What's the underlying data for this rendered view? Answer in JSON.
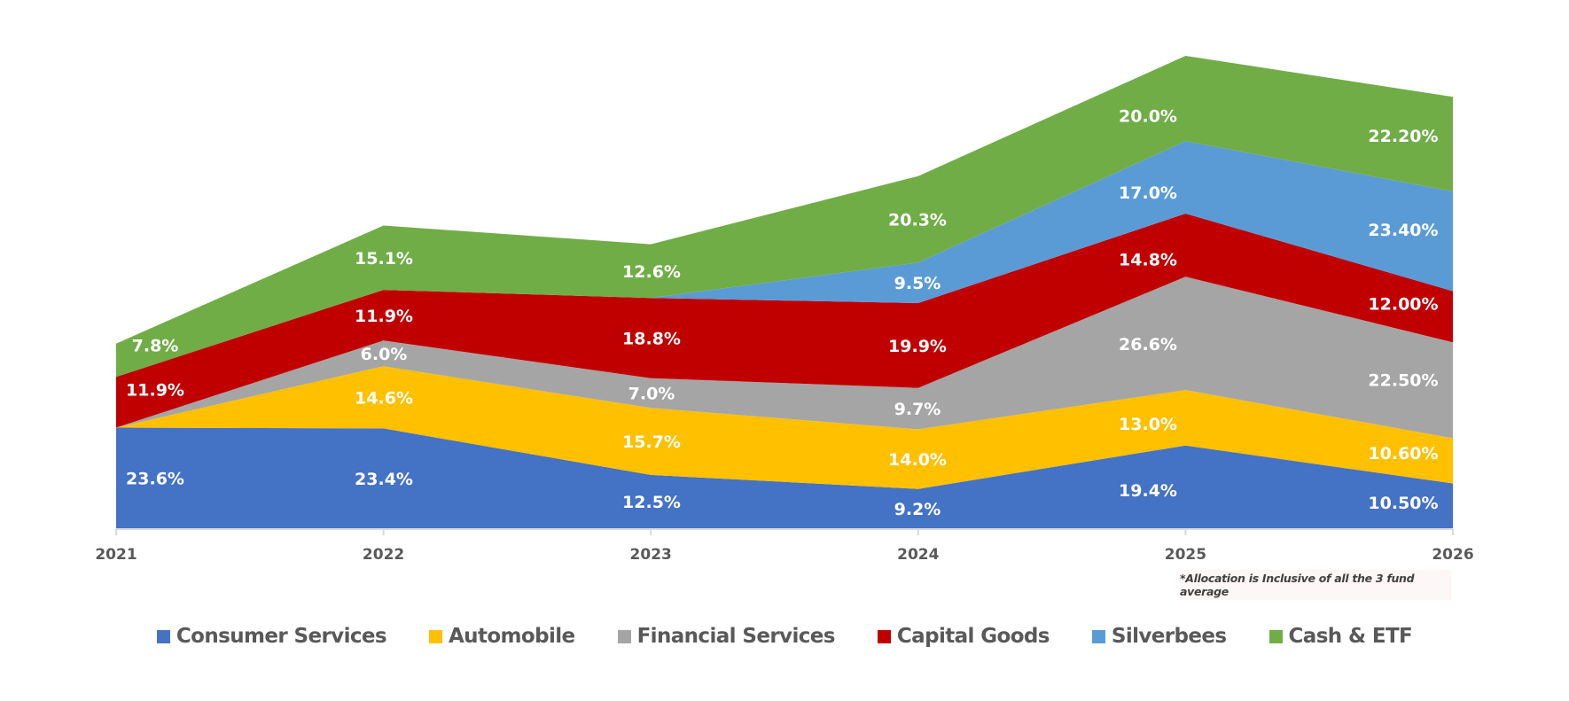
{
  "chart_data": {
    "type": "area",
    "stacked": true,
    "title": "",
    "xlabel": "",
    "ylabel": "",
    "categories": [
      "2021",
      "2022",
      "2023",
      "2024",
      "2025",
      "2026"
    ],
    "series": [
      {
        "name": "Consumer Services",
        "color": "#4472c4",
        "values": [
          23.6,
          23.4,
          12.5,
          9.2,
          19.4,
          10.5
        ],
        "labels": [
          "23.6%",
          "23.4%",
          "12.5%",
          "9.2%",
          "19.4%",
          "10.50%"
        ]
      },
      {
        "name": "Automobile",
        "color": "#ffc000",
        "values": [
          0,
          14.6,
          15.7,
          14.0,
          13.0,
          10.6
        ],
        "labels": [
          "",
          "14.6%",
          "15.7%",
          "14.0%",
          "13.0%",
          "10.60%"
        ]
      },
      {
        "name": "Financial Services",
        "color": "#a5a5a5",
        "values": [
          0,
          6.0,
          7.0,
          9.7,
          26.6,
          22.5
        ],
        "labels": [
          "",
          "6.0%",
          "7.0%",
          "9.7%",
          "26.6%",
          "22.50%"
        ]
      },
      {
        "name": "Capital Goods",
        "color": "#c00000",
        "values": [
          11.9,
          11.9,
          18.8,
          19.9,
          14.8,
          12.0
        ],
        "labels": [
          "11.9%",
          "11.9%",
          "18.8%",
          "19.9%",
          "14.8%",
          "12.00%"
        ]
      },
      {
        "name": "Silverbees",
        "color": "#5b9bd5",
        "values": [
          0,
          0,
          0,
          9.5,
          17.0,
          23.4
        ],
        "labels": [
          "",
          "",
          "",
          "9.5%",
          "17.0%",
          "23.40%"
        ]
      },
      {
        "name": "Cash & ETF",
        "color": "#70ad47",
        "values": [
          7.8,
          15.1,
          12.6,
          20.3,
          20.0,
          22.2
        ],
        "labels": [
          "7.8%",
          "15.1%",
          "12.6%",
          "20.3%",
          "20.0%",
          "22.20%"
        ]
      }
    ],
    "ylim": [
      0,
      110.8
    ],
    "grid": false,
    "legend_position": "bottom",
    "data_labels": true
  },
  "footnote": "*Allocation is Inclusive of all the 3 fund average"
}
